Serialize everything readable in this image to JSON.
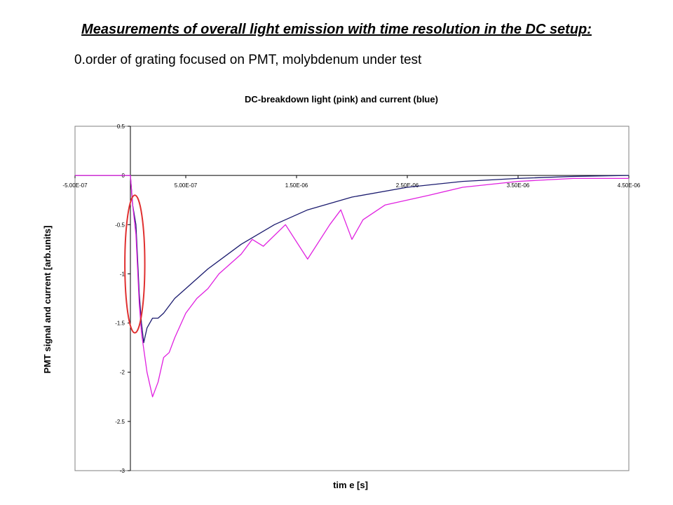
{
  "slide": {
    "title": "Measurements of overall light emission with time resolution in the DC setup:",
    "subtitle": "0.order of grating focused on PMT, molybdenum under test"
  },
  "chart_data": {
    "type": "line",
    "title": "DC-breakdown light (pink) and current (blue)",
    "xlabel": "tim e [s]",
    "ylabel": "PMT signal and current [arb.units]",
    "xlim": [
      -5e-07,
      4.5e-06
    ],
    "ylim": [
      -3,
      0.5
    ],
    "x_tick_values": [
      -5e-07,
      5e-07,
      1.5e-06,
      2.5e-06,
      3.5e-06,
      4.5e-06
    ],
    "x_tick_labels": [
      "-5.00E-07",
      "5.00E-07",
      "1.50E-06",
      "2.50E-06",
      "3.50E-06",
      "4.50E-06"
    ],
    "y_tick_values": [
      0.5,
      0,
      -0.5,
      -1,
      -1.5,
      -2,
      -2.5,
      -3
    ],
    "y_tick_labels": [
      "0.5",
      "0",
      "-0.5",
      "-1",
      "-1.5",
      "-2",
      "-2.5",
      "-3"
    ],
    "grid": false,
    "legend": "none",
    "series": [
      {
        "color": "#1a1a6e",
        "x": [
          -5e-07,
          -2e-07,
          0,
          2e-08,
          5e-08,
          8e-08,
          1e-07,
          1.2e-07,
          1.5e-07,
          2e-07,
          2.5e-07,
          3e-07,
          4e-07,
          5e-07,
          7e-07,
          1e-06,
          1.3e-06,
          1.6e-06,
          2e-06,
          2.5e-06,
          3e-06,
          3.5e-06,
          4e-06,
          4.5e-06
        ],
        "y": [
          0.0,
          0.0,
          0.0,
          -0.3,
          -0.5,
          -1.2,
          -1.5,
          -1.7,
          -1.55,
          -1.45,
          -1.45,
          -1.4,
          -1.25,
          -1.15,
          -0.95,
          -0.7,
          -0.5,
          -0.35,
          -0.22,
          -0.12,
          -0.06,
          -0.03,
          -0.01,
          0.0
        ]
      },
      {
        "color": "#e020e0",
        "x": [
          -5e-07,
          -2e-07,
          0,
          2e-08,
          5e-08,
          8e-08,
          1e-07,
          1.5e-07,
          2e-07,
          2.5e-07,
          3e-07,
          3.5e-07,
          4e-07,
          5e-07,
          6e-07,
          7e-07,
          8e-07,
          1e-06,
          1.1e-06,
          1.2e-06,
          1.4e-06,
          1.6e-06,
          1.8e-06,
          1.9e-06,
          2e-06,
          2.1e-06,
          2.3e-06,
          2.5e-06,
          2.7e-06,
          3e-06,
          3.5e-06,
          4e-06,
          4.5e-06
        ],
        "y": [
          0.0,
          0.0,
          0.0,
          -0.3,
          -0.6,
          -1.3,
          -1.6,
          -2.0,
          -2.25,
          -2.1,
          -1.85,
          -1.8,
          -1.65,
          -1.4,
          -1.25,
          -1.15,
          -1.0,
          -0.8,
          -0.65,
          -0.72,
          -0.5,
          -0.85,
          -0.5,
          -0.35,
          -0.65,
          -0.45,
          -0.3,
          -0.25,
          -0.2,
          -0.12,
          -0.06,
          -0.03,
          -0.03
        ]
      }
    ],
    "annotations": [
      {
        "type": "ellipse",
        "color": "#e03030",
        "x_range": [
          -5e-08,
          1.3e-07
        ],
        "y_range": [
          -1.6,
          -0.2
        ]
      }
    ]
  }
}
